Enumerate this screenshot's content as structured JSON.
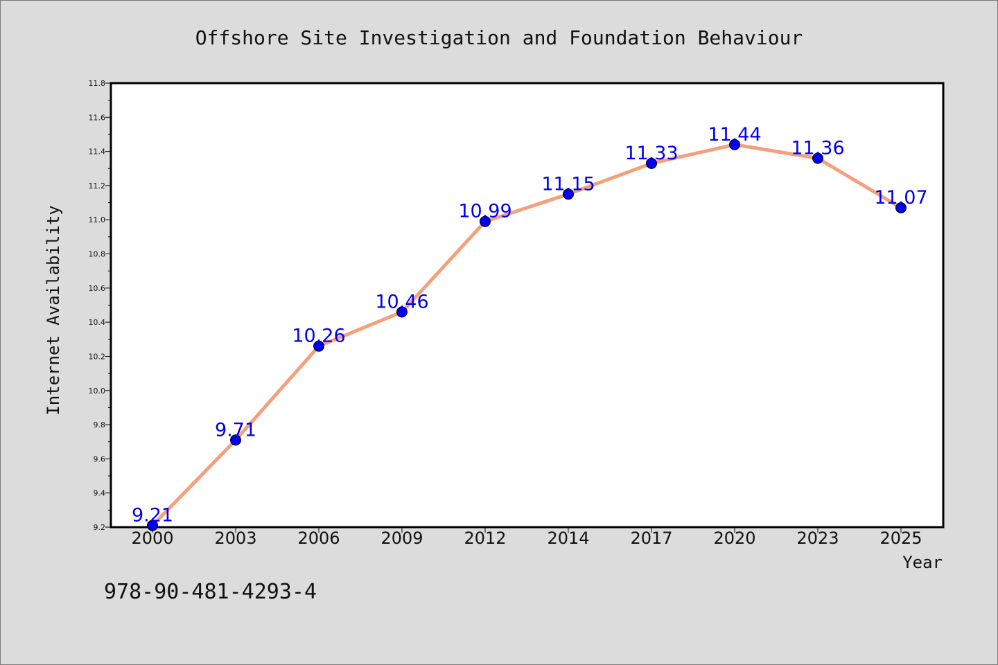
{
  "chart_data": {
    "type": "line",
    "title": "Offshore Site Investigation and Foundation Behaviour",
    "xlabel": "Year",
    "ylabel": "Internet Availability",
    "categories": [
      "2000",
      "2003",
      "2006",
      "2009",
      "2012",
      "2014",
      "2017",
      "2020",
      "2023",
      "2025"
    ],
    "series": [
      {
        "values": [
          9.21,
          9.71,
          10.26,
          10.46,
          10.99,
          11.15,
          11.33,
          11.44,
          11.36,
          11.07
        ]
      }
    ],
    "value_labels": [
      "9.21",
      "9.71",
      "10.26",
      "10.46",
      "10.99",
      "11.15",
      "11.33",
      "11.44",
      "11.36",
      "11.07"
    ],
    "ylim": [
      9.2,
      11.8
    ],
    "yticks": [
      "9.2",
      "9.4",
      "9.6",
      "9.8",
      "10.0",
      "10.2",
      "10.4",
      "10.6",
      "10.8",
      "11.0",
      "11.2",
      "11.4",
      "11.6",
      "11.8"
    ],
    "grid": false,
    "line_color": "#f4a07c",
    "marker_color": "#0000ee",
    "label_color": "#0000ee"
  },
  "footer": {
    "isbn": "978-90-481-4293-4"
  }
}
